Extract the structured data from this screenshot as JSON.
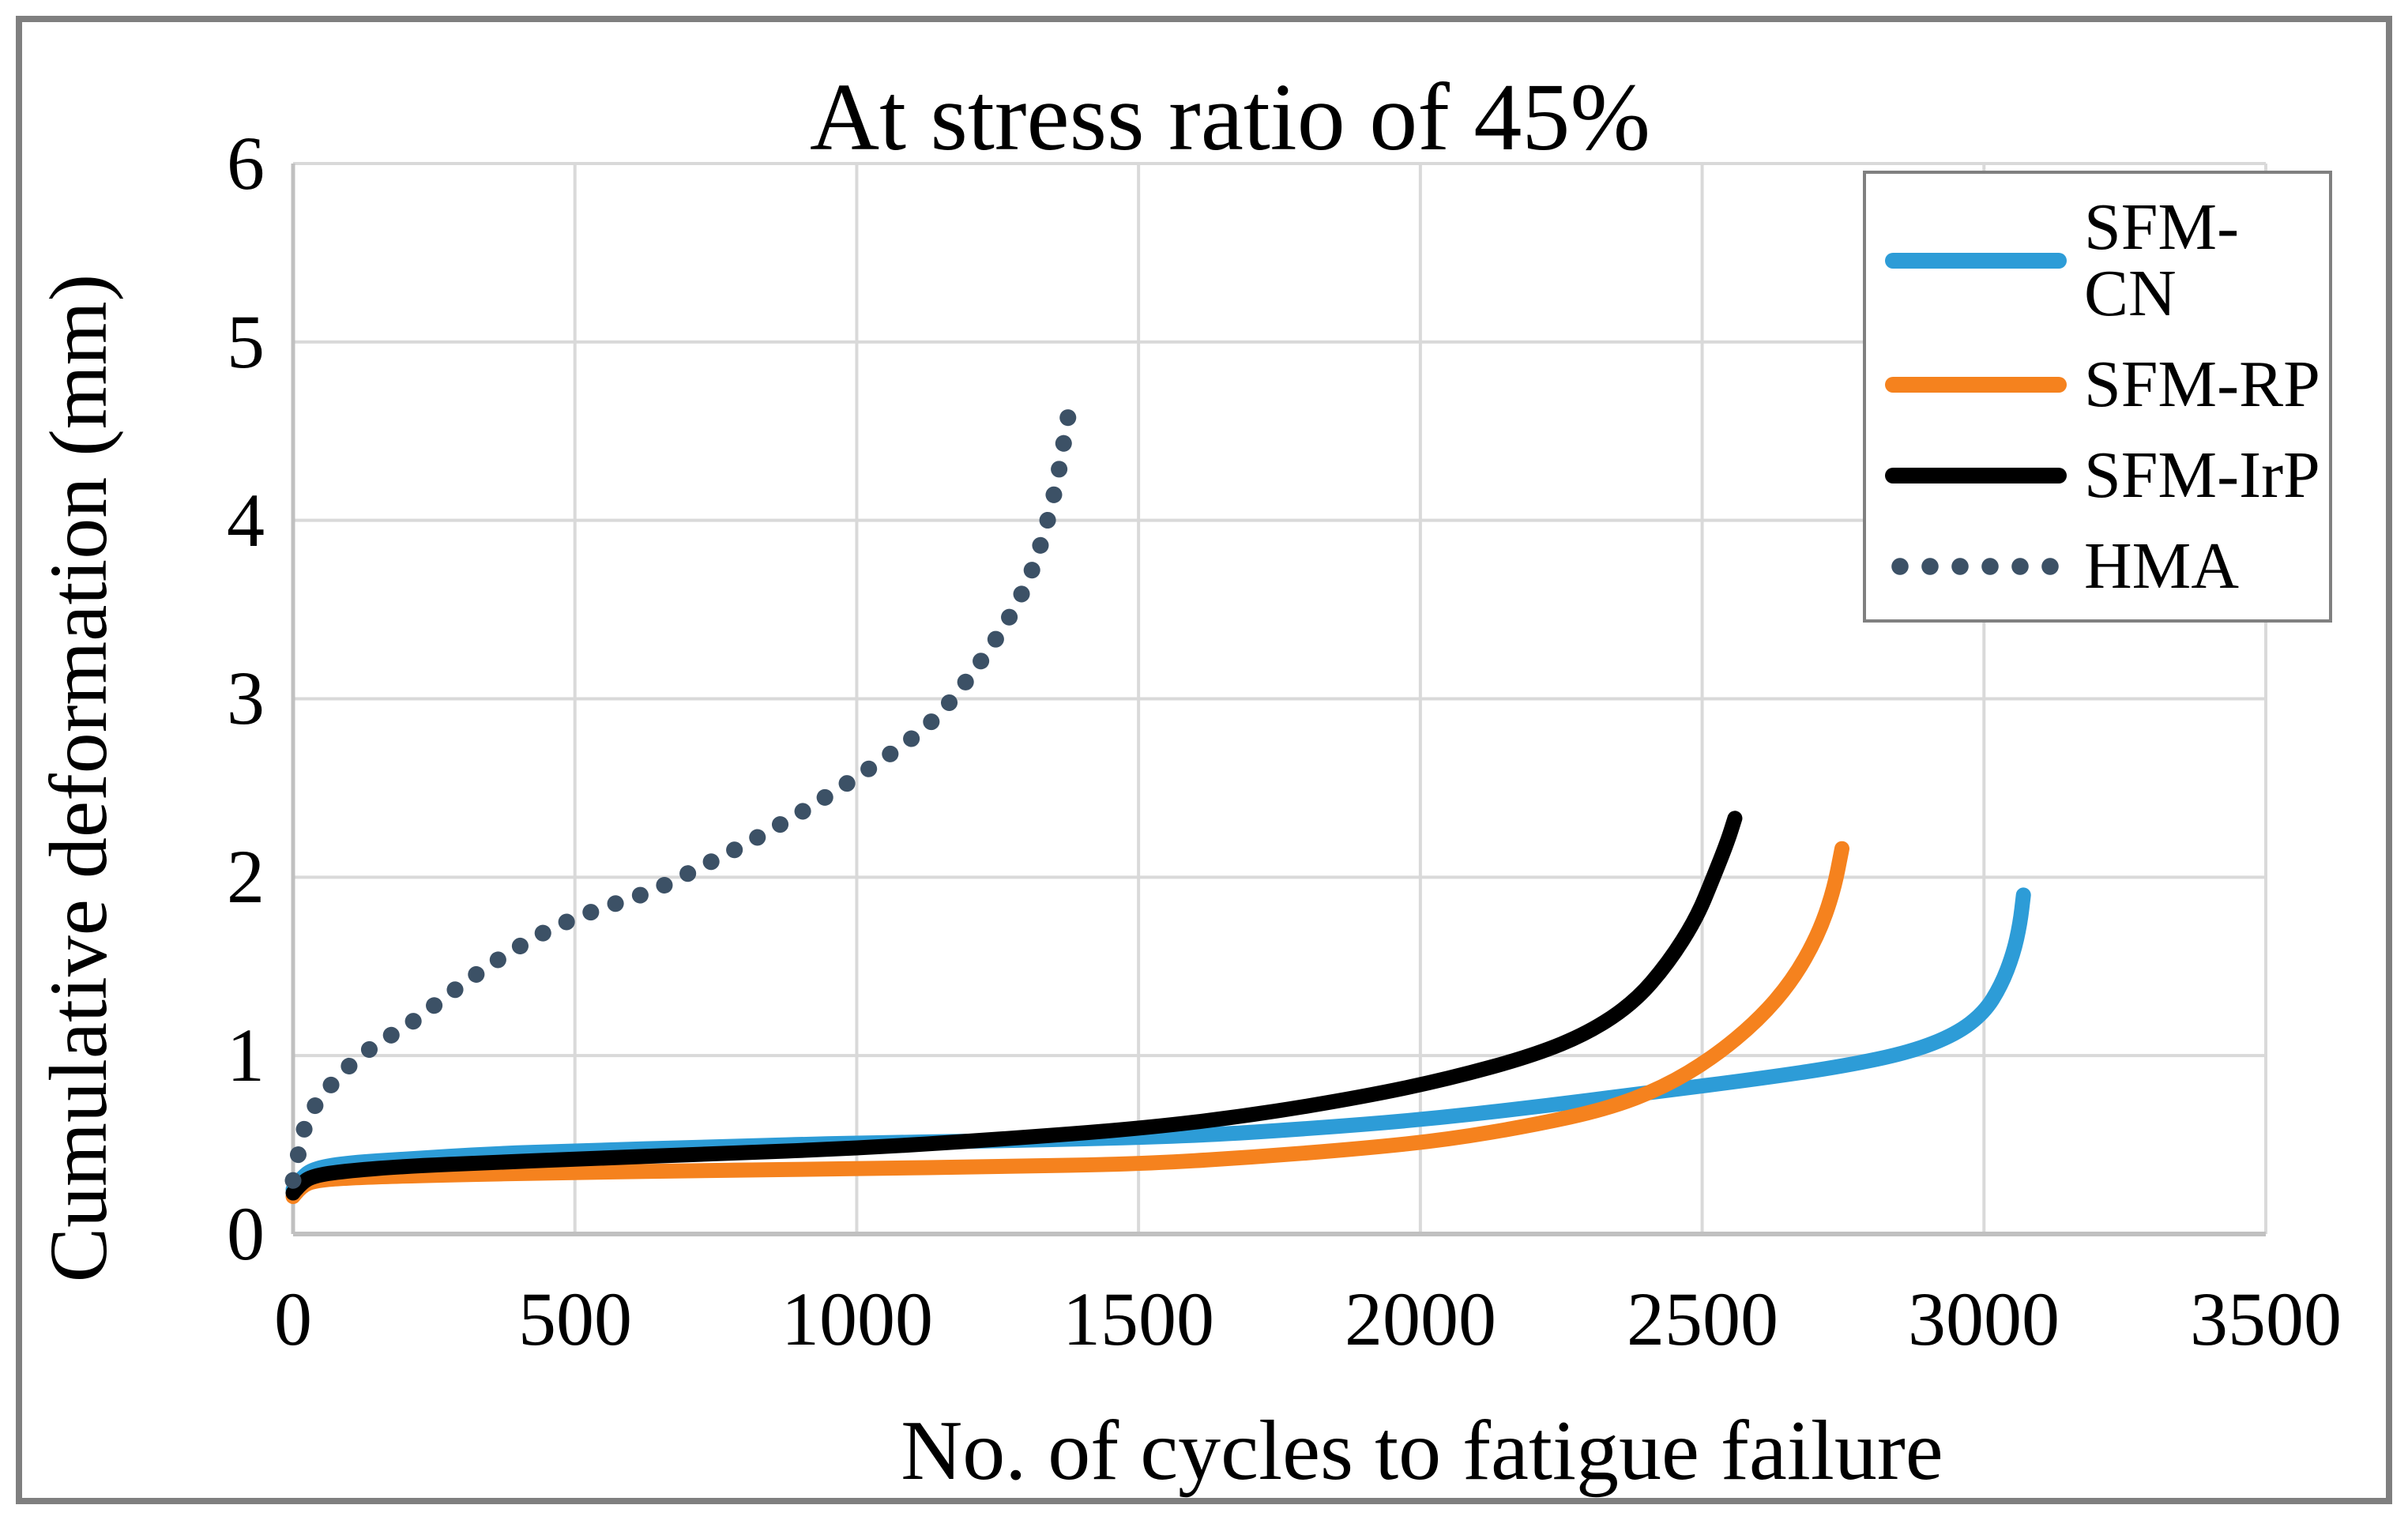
{
  "figure": {
    "background": "#ffffff",
    "outer_border_color": "#7f7f7f",
    "legend_border_color": "#808080",
    "gridline_color": "#d9d9d9",
    "axis_line_color": "#c0c0c0"
  },
  "chart_data": {
    "type": "line",
    "title": "At stress ratio of 45%",
    "xlabel": "No. of cycles to fatigue failure",
    "ylabel": "Cumulative deformation (mm)",
    "xlim": [
      0,
      3500
    ],
    "ylim": [
      0,
      6
    ],
    "x_ticks": [
      0,
      500,
      1000,
      1500,
      2000,
      2500,
      3000,
      3500
    ],
    "y_ticks": [
      0,
      1,
      2,
      3,
      4,
      5,
      6
    ],
    "x_tick_labels": [
      "0",
      "500",
      "1000",
      "1500",
      "2000",
      "2500",
      "3000",
      "3500"
    ],
    "y_tick_labels": [
      "0",
      "1",
      "2",
      "3",
      "4",
      "5",
      "6"
    ],
    "grid": true,
    "legend_position": "upper right",
    "series": [
      {
        "name": "SFM-CN",
        "color": "#2d9cd7",
        "style": "solid",
        "points": [
          [
            0,
            0.25
          ],
          [
            15,
            0.32
          ],
          [
            40,
            0.37
          ],
          [
            100,
            0.4
          ],
          [
            200,
            0.42
          ],
          [
            350,
            0.45
          ],
          [
            500,
            0.465
          ],
          [
            750,
            0.49
          ],
          [
            1000,
            0.51
          ],
          [
            1300,
            0.525
          ],
          [
            1600,
            0.55
          ],
          [
            1800,
            0.59
          ],
          [
            2000,
            0.64
          ],
          [
            2200,
            0.71
          ],
          [
            2400,
            0.79
          ],
          [
            2600,
            0.87
          ],
          [
            2750,
            0.94
          ],
          [
            2870,
            1.02
          ],
          [
            2950,
            1.12
          ],
          [
            3000,
            1.24
          ],
          [
            3030,
            1.39
          ],
          [
            3052,
            1.57
          ],
          [
            3064,
            1.74
          ],
          [
            3070,
            1.9
          ]
        ]
      },
      {
        "name": "SFM-RP",
        "color": "#f5821e",
        "style": "solid",
        "points": [
          [
            0,
            0.21
          ],
          [
            15,
            0.27
          ],
          [
            40,
            0.3
          ],
          [
            100,
            0.315
          ],
          [
            250,
            0.33
          ],
          [
            500,
            0.345
          ],
          [
            750,
            0.357
          ],
          [
            1000,
            0.366
          ],
          [
            1250,
            0.378
          ],
          [
            1500,
            0.392
          ],
          [
            1700,
            0.43
          ],
          [
            1900,
            0.48
          ],
          [
            2050,
            0.53
          ],
          [
            2200,
            0.61
          ],
          [
            2330,
            0.7
          ],
          [
            2430,
            0.82
          ],
          [
            2520,
            0.99
          ],
          [
            2600,
            1.2
          ],
          [
            2660,
            1.42
          ],
          [
            2705,
            1.67
          ],
          [
            2733,
            1.92
          ],
          [
            2748,
            2.16
          ]
        ]
      },
      {
        "name": "SFM-IrP",
        "color": "#000000",
        "style": "solid",
        "points": [
          [
            0,
            0.23
          ],
          [
            15,
            0.29
          ],
          [
            40,
            0.33
          ],
          [
            100,
            0.355
          ],
          [
            200,
            0.38
          ],
          [
            350,
            0.4
          ],
          [
            500,
            0.42
          ],
          [
            750,
            0.45
          ],
          [
            1000,
            0.48
          ],
          [
            1250,
            0.53
          ],
          [
            1500,
            0.59
          ],
          [
            1700,
            0.665
          ],
          [
            1900,
            0.77
          ],
          [
            2050,
            0.87
          ],
          [
            2200,
            1.0
          ],
          [
            2300,
            1.13
          ],
          [
            2380,
            1.3
          ],
          [
            2440,
            1.52
          ],
          [
            2490,
            1.77
          ],
          [
            2520,
            2.0
          ],
          [
            2545,
            2.2
          ],
          [
            2558,
            2.33
          ]
        ]
      },
      {
        "name": "HMA",
        "color": "#3c5166",
        "style": "dotted",
        "points": [
          [
            0,
            0.3
          ],
          [
            15,
            0.55
          ],
          [
            30,
            0.68
          ],
          [
            55,
            0.79
          ],
          [
            85,
            0.9
          ],
          [
            120,
            1.0
          ],
          [
            160,
            1.09
          ],
          [
            200,
            1.16
          ],
          [
            250,
            1.28
          ],
          [
            300,
            1.4
          ],
          [
            350,
            1.51
          ],
          [
            400,
            1.61
          ],
          [
            450,
            1.7
          ],
          [
            500,
            1.77
          ],
          [
            550,
            1.83
          ],
          [
            600,
            1.88
          ],
          [
            650,
            1.94
          ],
          [
            700,
            2.02
          ],
          [
            750,
            2.1
          ],
          [
            800,
            2.18
          ],
          [
            850,
            2.27
          ],
          [
            900,
            2.36
          ],
          [
            950,
            2.46
          ],
          [
            1000,
            2.56
          ],
          [
            1050,
            2.67
          ],
          [
            1100,
            2.78
          ],
          [
            1150,
            2.92
          ],
          [
            1200,
            3.12
          ],
          [
            1240,
            3.3
          ],
          [
            1270,
            3.45
          ],
          [
            1295,
            3.6
          ],
          [
            1315,
            3.75
          ],
          [
            1332,
            3.92
          ],
          [
            1347,
            4.1
          ],
          [
            1359,
            4.28
          ],
          [
            1368,
            4.45
          ],
          [
            1375,
            4.58
          ],
          [
            1380,
            4.68
          ]
        ]
      }
    ]
  }
}
